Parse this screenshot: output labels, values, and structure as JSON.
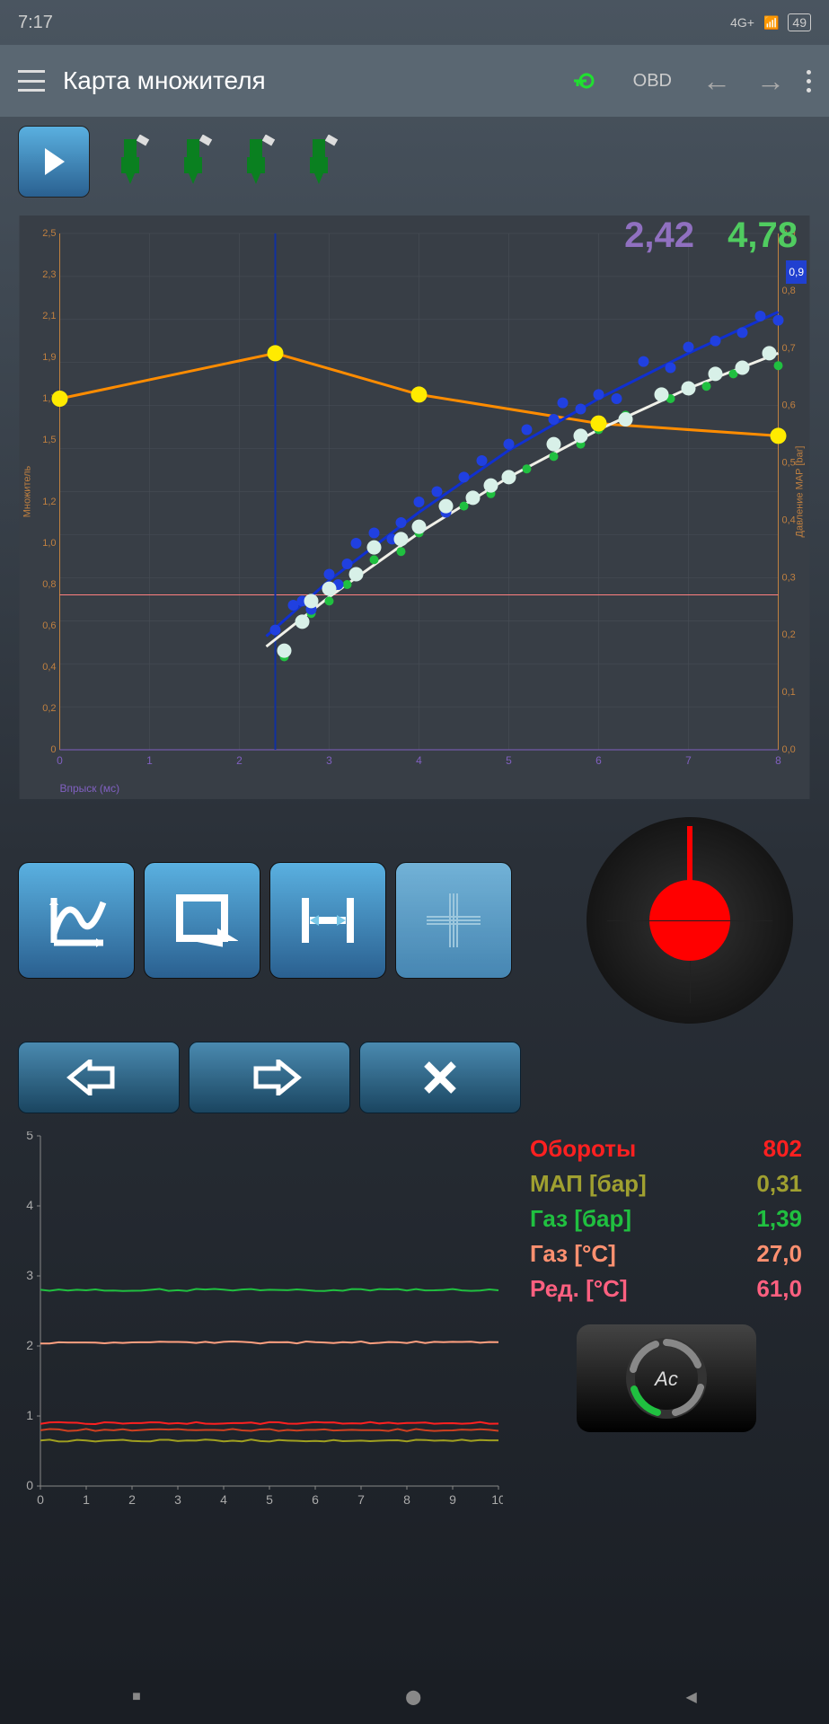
{
  "statusbar": {
    "time": "7:17",
    "network": "4G+",
    "battery": "49"
  },
  "topbar": {
    "title": "Карта множителя",
    "obd": "OBD"
  },
  "overlay": {
    "val1": {
      "text": "2,42",
      "color": "#9070c0"
    },
    "val2": {
      "text": "4,78",
      "color": "#50cc60"
    },
    "badge": "0,9"
  },
  "chart": {
    "bg": "#2a3038",
    "grid_color": "#4a5058",
    "xlabel": "Впрыск (мс)",
    "xlabel_color": "#8060c0",
    "ylabel": "Множитель",
    "ylabel_color": "#c08040",
    "ylabel2": "Давление МАР [bar]",
    "ylabel2_color": "#c08040",
    "xlim": [
      0,
      8
    ],
    "ylim": [
      0,
      2.5
    ],
    "ylim2": [
      0,
      0.9
    ],
    "yticks": [
      "0",
      "0,2",
      "0,4",
      "0,6",
      "0,8",
      "1,0",
      "1,2",
      "1,5",
      "1,7",
      "1,9",
      "2,1",
      "2,3",
      "2,5"
    ],
    "yticks2": [
      "0,0",
      "0,1",
      "0,2",
      "0,3",
      "0,4",
      "0,5",
      "0,6",
      "0,7",
      "0,8",
      "0,9"
    ],
    "xticks": [
      "0",
      "1",
      "2",
      "3",
      "4",
      "5",
      "6",
      "7",
      "8"
    ],
    "orange_line": {
      "color": "#ff8c00",
      "width": 3,
      "points": [
        [
          0,
          1.7
        ],
        [
          2.4,
          1.92
        ],
        [
          4,
          1.72
        ],
        [
          6,
          1.58
        ],
        [
          8,
          1.52
        ]
      ]
    },
    "orange_markers": {
      "color": "#ffeb00",
      "r": 9,
      "points": [
        [
          0,
          1.7
        ],
        [
          2.4,
          1.92
        ],
        [
          4,
          1.72
        ],
        [
          6,
          1.58
        ],
        [
          8,
          1.52
        ]
      ]
    },
    "blue_curve": {
      "color": "#1030d0",
      "width": 3,
      "points": [
        [
          2.3,
          0.55
        ],
        [
          3,
          0.82
        ],
        [
          4,
          1.15
        ],
        [
          5,
          1.45
        ],
        [
          6,
          1.7
        ],
        [
          7,
          1.92
        ],
        [
          8,
          2.12
        ]
      ]
    },
    "white_curve": {
      "color": "#f0f0e8",
      "width": 3,
      "points": [
        [
          2.3,
          0.5
        ],
        [
          3,
          0.74
        ],
        [
          4,
          1.05
        ],
        [
          5,
          1.32
        ],
        [
          6,
          1.55
        ],
        [
          7,
          1.75
        ],
        [
          8,
          1.92
        ]
      ]
    },
    "blue_dots": {
      "color": "#2040e0",
      "points": [
        [
          2.4,
          0.58
        ],
        [
          2.6,
          0.7
        ],
        [
          2.7,
          0.72
        ],
        [
          2.8,
          0.68
        ],
        [
          3.0,
          0.85
        ],
        [
          3.1,
          0.8
        ],
        [
          3.2,
          0.9
        ],
        [
          3.3,
          1.0
        ],
        [
          3.5,
          1.05
        ],
        [
          3.7,
          1.02
        ],
        [
          3.8,
          1.1
        ],
        [
          4.0,
          1.2
        ],
        [
          4.2,
          1.25
        ],
        [
          4.3,
          1.15
        ],
        [
          4.5,
          1.32
        ],
        [
          4.7,
          1.4
        ],
        [
          5.0,
          1.48
        ],
        [
          5.2,
          1.55
        ],
        [
          5.5,
          1.6
        ],
        [
          5.6,
          1.68
        ],
        [
          5.8,
          1.65
        ],
        [
          6.0,
          1.72
        ],
        [
          6.2,
          1.7
        ],
        [
          6.5,
          1.88
        ],
        [
          6.8,
          1.85
        ],
        [
          7.0,
          1.95
        ],
        [
          7.3,
          1.98
        ],
        [
          7.6,
          2.02
        ],
        [
          7.8,
          2.1
        ],
        [
          8.0,
          2.08
        ]
      ]
    },
    "white_dots": {
      "color": "#d8f0e8",
      "points": [
        [
          2.5,
          0.48
        ],
        [
          2.7,
          0.62
        ],
        [
          2.8,
          0.72
        ],
        [
          3.0,
          0.78
        ],
        [
          3.3,
          0.85
        ],
        [
          3.5,
          0.98
        ],
        [
          3.8,
          1.02
        ],
        [
          4.0,
          1.08
        ],
        [
          4.3,
          1.18
        ],
        [
          4.6,
          1.22
        ],
        [
          4.8,
          1.28
        ],
        [
          5.0,
          1.32
        ],
        [
          5.5,
          1.48
        ],
        [
          5.8,
          1.52
        ],
        [
          6.0,
          1.58
        ],
        [
          6.3,
          1.6
        ],
        [
          6.7,
          1.72
        ],
        [
          7.0,
          1.75
        ],
        [
          7.3,
          1.82
        ],
        [
          7.6,
          1.85
        ],
        [
          7.9,
          1.92
        ]
      ]
    },
    "green_dots": {
      "color": "#20c040",
      "points": [
        [
          2.5,
          0.45
        ],
        [
          2.8,
          0.66
        ],
        [
          3.0,
          0.72
        ],
        [
          3.2,
          0.8
        ],
        [
          3.5,
          0.92
        ],
        [
          3.8,
          0.96
        ],
        [
          4.0,
          1.05
        ],
        [
          4.5,
          1.18
        ],
        [
          4.8,
          1.24
        ],
        [
          5.2,
          1.36
        ],
        [
          5.5,
          1.42
        ],
        [
          5.8,
          1.48
        ],
        [
          6.0,
          1.55
        ],
        [
          6.3,
          1.62
        ],
        [
          6.8,
          1.7
        ],
        [
          7.2,
          1.76
        ],
        [
          7.5,
          1.82
        ],
        [
          8.0,
          1.86
        ]
      ]
    },
    "cursor_x": 2.4,
    "hline_y": 0.75,
    "hline_color": "#ff8080"
  },
  "minichart": {
    "xlim": [
      0,
      10
    ],
    "ylim": [
      0,
      5
    ],
    "xticks": [
      "0",
      "1",
      "2",
      "3",
      "4",
      "5",
      "6",
      "7",
      "8",
      "9",
      "10"
    ],
    "yticks": [
      "0",
      "1",
      "2",
      "3",
      "4",
      "5"
    ],
    "lines": [
      {
        "color": "#20c040",
        "y": 2.8
      },
      {
        "color": "#ffa080",
        "y": 2.05
      },
      {
        "color": "#ff2020",
        "y": 0.9
      },
      {
        "color": "#d04020",
        "y": 0.8
      },
      {
        "color": "#a0a020",
        "y": 0.65
      }
    ]
  },
  "readings": [
    {
      "label": "Обороты",
      "value": "802",
      "color": "#ff2020"
    },
    {
      "label": "МАП [бар]",
      "value": "0,31",
      "color": "#a0a030"
    },
    {
      "label": "Газ [бар]",
      "value": "1,39",
      "color": "#20c040"
    },
    {
      "label": "Газ [°C]",
      "value": "27,0",
      "color": "#ff9070"
    },
    {
      "label": "Ред. [°C]",
      "value": "61,0",
      "color": "#ff6080"
    }
  ],
  "device": {
    "label": "Ac"
  }
}
